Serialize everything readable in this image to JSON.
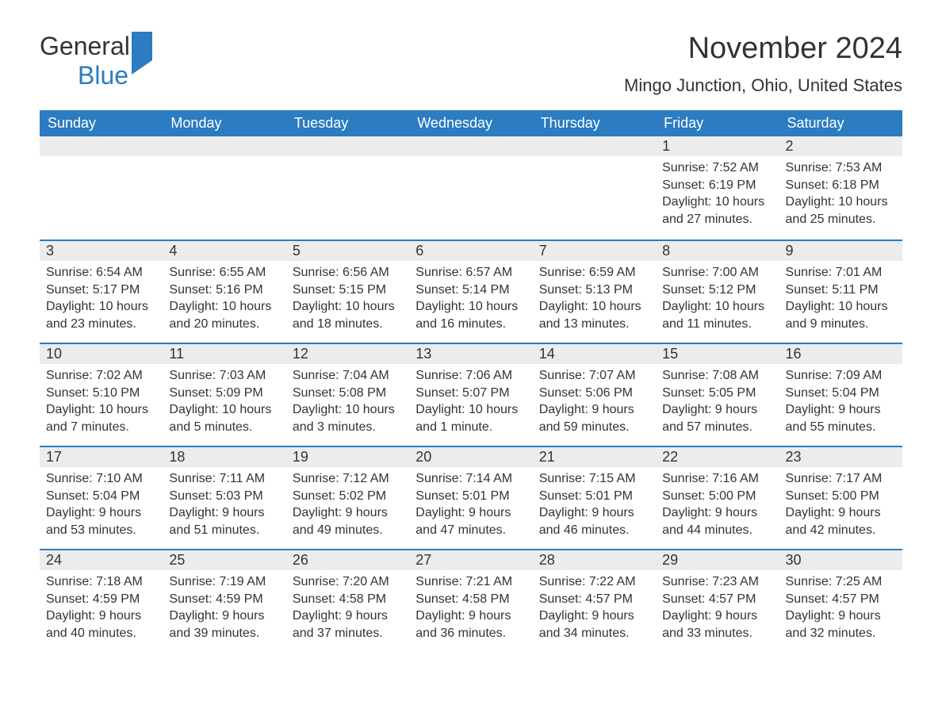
{
  "logo": {
    "text1": "General",
    "text2": "Blue"
  },
  "title": "November 2024",
  "location": "Mingo Junction, Ohio, United States",
  "colors": {
    "header_bg": "#2b7cc0",
    "header_text": "#ffffff",
    "daynum_bg": "#ececec",
    "border_top": "#2b7cc0",
    "body_text": "#333333",
    "logo_blue": "#2b7cc0",
    "background": "#ffffff"
  },
  "fonts": {
    "title_size_pt": 28,
    "location_size_pt": 16,
    "header_size_pt": 14,
    "body_size_pt": 12
  },
  "layout": {
    "cols": 7,
    "rows": 5
  },
  "weekdays": [
    "Sunday",
    "Monday",
    "Tuesday",
    "Wednesday",
    "Thursday",
    "Friday",
    "Saturday"
  ],
  "first_day_col": 5,
  "days": [
    {
      "n": "1",
      "sunrise": "7:52 AM",
      "sunset": "6:19 PM",
      "daylight": "10 hours and 27 minutes."
    },
    {
      "n": "2",
      "sunrise": "7:53 AM",
      "sunset": "6:18 PM",
      "daylight": "10 hours and 25 minutes."
    },
    {
      "n": "3",
      "sunrise": "6:54 AM",
      "sunset": "5:17 PM",
      "daylight": "10 hours and 23 minutes."
    },
    {
      "n": "4",
      "sunrise": "6:55 AM",
      "sunset": "5:16 PM",
      "daylight": "10 hours and 20 minutes."
    },
    {
      "n": "5",
      "sunrise": "6:56 AM",
      "sunset": "5:15 PM",
      "daylight": "10 hours and 18 minutes."
    },
    {
      "n": "6",
      "sunrise": "6:57 AM",
      "sunset": "5:14 PM",
      "daylight": "10 hours and 16 minutes."
    },
    {
      "n": "7",
      "sunrise": "6:59 AM",
      "sunset": "5:13 PM",
      "daylight": "10 hours and 13 minutes."
    },
    {
      "n": "8",
      "sunrise": "7:00 AM",
      "sunset": "5:12 PM",
      "daylight": "10 hours and 11 minutes."
    },
    {
      "n": "9",
      "sunrise": "7:01 AM",
      "sunset": "5:11 PM",
      "daylight": "10 hours and 9 minutes."
    },
    {
      "n": "10",
      "sunrise": "7:02 AM",
      "sunset": "5:10 PM",
      "daylight": "10 hours and 7 minutes."
    },
    {
      "n": "11",
      "sunrise": "7:03 AM",
      "sunset": "5:09 PM",
      "daylight": "10 hours and 5 minutes."
    },
    {
      "n": "12",
      "sunrise": "7:04 AM",
      "sunset": "5:08 PM",
      "daylight": "10 hours and 3 minutes."
    },
    {
      "n": "13",
      "sunrise": "7:06 AM",
      "sunset": "5:07 PM",
      "daylight": "10 hours and 1 minute."
    },
    {
      "n": "14",
      "sunrise": "7:07 AM",
      "sunset": "5:06 PM",
      "daylight": "9 hours and 59 minutes."
    },
    {
      "n": "15",
      "sunrise": "7:08 AM",
      "sunset": "5:05 PM",
      "daylight": "9 hours and 57 minutes."
    },
    {
      "n": "16",
      "sunrise": "7:09 AM",
      "sunset": "5:04 PM",
      "daylight": "9 hours and 55 minutes."
    },
    {
      "n": "17",
      "sunrise": "7:10 AM",
      "sunset": "5:04 PM",
      "daylight": "9 hours and 53 minutes."
    },
    {
      "n": "18",
      "sunrise": "7:11 AM",
      "sunset": "5:03 PM",
      "daylight": "9 hours and 51 minutes."
    },
    {
      "n": "19",
      "sunrise": "7:12 AM",
      "sunset": "5:02 PM",
      "daylight": "9 hours and 49 minutes."
    },
    {
      "n": "20",
      "sunrise": "7:14 AM",
      "sunset": "5:01 PM",
      "daylight": "9 hours and 47 minutes."
    },
    {
      "n": "21",
      "sunrise": "7:15 AM",
      "sunset": "5:01 PM",
      "daylight": "9 hours and 46 minutes."
    },
    {
      "n": "22",
      "sunrise": "7:16 AM",
      "sunset": "5:00 PM",
      "daylight": "9 hours and 44 minutes."
    },
    {
      "n": "23",
      "sunrise": "7:17 AM",
      "sunset": "5:00 PM",
      "daylight": "9 hours and 42 minutes."
    },
    {
      "n": "24",
      "sunrise": "7:18 AM",
      "sunset": "4:59 PM",
      "daylight": "9 hours and 40 minutes."
    },
    {
      "n": "25",
      "sunrise": "7:19 AM",
      "sunset": "4:59 PM",
      "daylight": "9 hours and 39 minutes."
    },
    {
      "n": "26",
      "sunrise": "7:20 AM",
      "sunset": "4:58 PM",
      "daylight": "9 hours and 37 minutes."
    },
    {
      "n": "27",
      "sunrise": "7:21 AM",
      "sunset": "4:58 PM",
      "daylight": "9 hours and 36 minutes."
    },
    {
      "n": "28",
      "sunrise": "7:22 AM",
      "sunset": "4:57 PM",
      "daylight": "9 hours and 34 minutes."
    },
    {
      "n": "29",
      "sunrise": "7:23 AM",
      "sunset": "4:57 PM",
      "daylight": "9 hours and 33 minutes."
    },
    {
      "n": "30",
      "sunrise": "7:25 AM",
      "sunset": "4:57 PM",
      "daylight": "9 hours and 32 minutes."
    }
  ],
  "labels": {
    "sunrise": "Sunrise: ",
    "sunset": "Sunset: ",
    "daylight": "Daylight: "
  }
}
